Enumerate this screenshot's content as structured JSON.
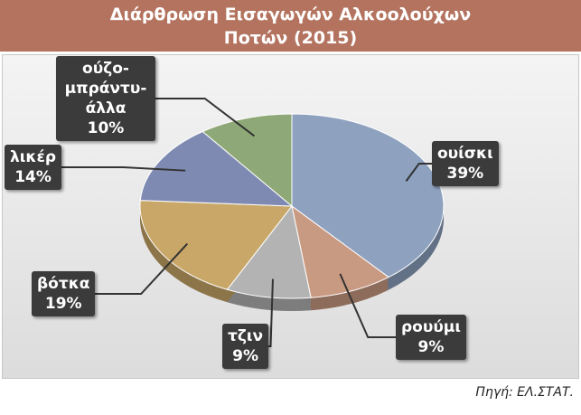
{
  "chart_data": {
    "type": "pie",
    "title": "Διάρθρωση Εισαγωγών Αλκοολούχων Ποτών (2015)",
    "categories": [
      "ουίσκι",
      "ρουύμι",
      "τζιν",
      "βότκα",
      "λικέρ",
      "ούζο-μπράντυ-άλλα"
    ],
    "values": [
      39,
      9,
      9,
      19,
      14,
      10
    ],
    "value_labels": [
      "39%",
      "9%",
      "9%",
      "19%",
      "14%",
      "10%"
    ],
    "colors": [
      "#8ea2c0",
      "#c99a82",
      "#b3b3b3",
      "#c8a768",
      "#7f8ab2",
      "#8fa877"
    ],
    "source": "Πηγή: ΕΛ.ΣΤΑΤ."
  }
}
